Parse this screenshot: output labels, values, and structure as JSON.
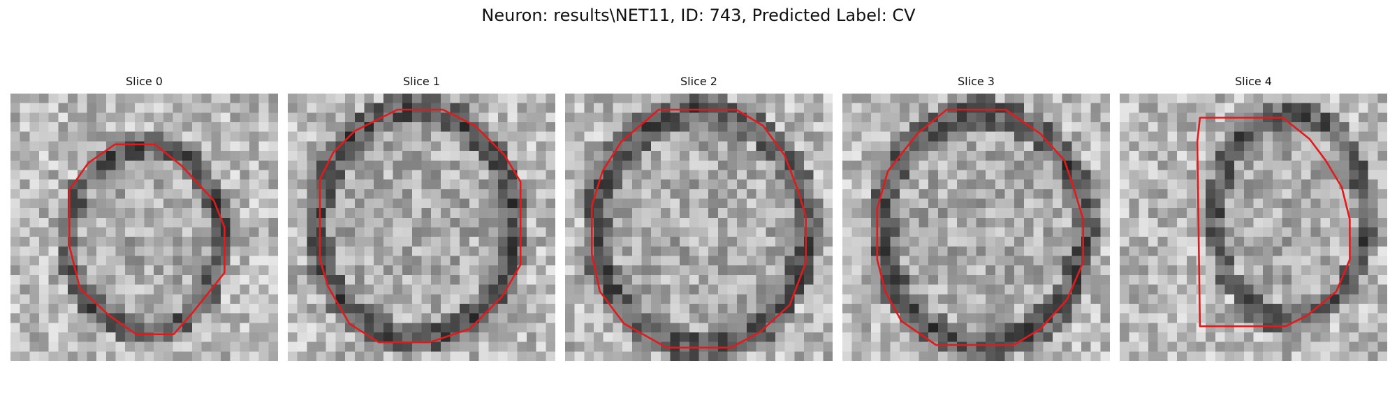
{
  "figure": {
    "title": "Neuron: results\\NET11, ID: 743, Predicted Label: CV"
  },
  "contour_color": "#e31a1c",
  "image_colormap": "grayscale",
  "slices": [
    {
      "title": "Slice 0",
      "seed": 11,
      "contour": [
        [
          0.39,
          0.19
        ],
        [
          0.54,
          0.19
        ],
        [
          0.64,
          0.27
        ],
        [
          0.76,
          0.4
        ],
        [
          0.8,
          0.5
        ],
        [
          0.8,
          0.67
        ],
        [
          0.68,
          0.82
        ],
        [
          0.61,
          0.9
        ],
        [
          0.47,
          0.9
        ],
        [
          0.37,
          0.83
        ],
        [
          0.26,
          0.73
        ],
        [
          0.22,
          0.57
        ],
        [
          0.22,
          0.36
        ],
        [
          0.29,
          0.26
        ]
      ]
    },
    {
      "title": "Slice 1",
      "seed": 23,
      "contour": [
        [
          0.41,
          0.06
        ],
        [
          0.58,
          0.06
        ],
        [
          0.7,
          0.12
        ],
        [
          0.81,
          0.23
        ],
        [
          0.87,
          0.33
        ],
        [
          0.87,
          0.64
        ],
        [
          0.8,
          0.76
        ],
        [
          0.68,
          0.88
        ],
        [
          0.53,
          0.93
        ],
        [
          0.34,
          0.93
        ],
        [
          0.23,
          0.86
        ],
        [
          0.15,
          0.72
        ],
        [
          0.12,
          0.62
        ],
        [
          0.12,
          0.32
        ],
        [
          0.17,
          0.22
        ],
        [
          0.25,
          0.14
        ]
      ]
    },
    {
      "title": "Slice 2",
      "seed": 37,
      "contour": [
        [
          0.35,
          0.06
        ],
        [
          0.64,
          0.06
        ],
        [
          0.74,
          0.12
        ],
        [
          0.82,
          0.23
        ],
        [
          0.87,
          0.36
        ],
        [
          0.9,
          0.46
        ],
        [
          0.9,
          0.63
        ],
        [
          0.84,
          0.79
        ],
        [
          0.73,
          0.89
        ],
        [
          0.62,
          0.95
        ],
        [
          0.38,
          0.95
        ],
        [
          0.22,
          0.86
        ],
        [
          0.13,
          0.74
        ],
        [
          0.1,
          0.6
        ],
        [
          0.1,
          0.42
        ],
        [
          0.14,
          0.29
        ],
        [
          0.21,
          0.18
        ]
      ]
    },
    {
      "title": "Slice 3",
      "seed": 53,
      "contour": [
        [
          0.39,
          0.06
        ],
        [
          0.61,
          0.06
        ],
        [
          0.74,
          0.15
        ],
        [
          0.83,
          0.25
        ],
        [
          0.87,
          0.37
        ],
        [
          0.9,
          0.47
        ],
        [
          0.9,
          0.63
        ],
        [
          0.84,
          0.77
        ],
        [
          0.74,
          0.88
        ],
        [
          0.64,
          0.94
        ],
        [
          0.35,
          0.94
        ],
        [
          0.22,
          0.85
        ],
        [
          0.16,
          0.74
        ],
        [
          0.13,
          0.62
        ],
        [
          0.13,
          0.43
        ],
        [
          0.17,
          0.29
        ],
        [
          0.28,
          0.15
        ]
      ]
    },
    {
      "title": "Slice 4",
      "seed": 71,
      "contour": [
        [
          0.3,
          0.09
        ],
        [
          0.61,
          0.09
        ],
        [
          0.71,
          0.17
        ],
        [
          0.77,
          0.25
        ],
        [
          0.83,
          0.35
        ],
        [
          0.86,
          0.47
        ],
        [
          0.86,
          0.62
        ],
        [
          0.81,
          0.74
        ],
        [
          0.7,
          0.83
        ],
        [
          0.62,
          0.87
        ],
        [
          0.3,
          0.87
        ],
        [
          0.29,
          0.18
        ]
      ]
    }
  ]
}
